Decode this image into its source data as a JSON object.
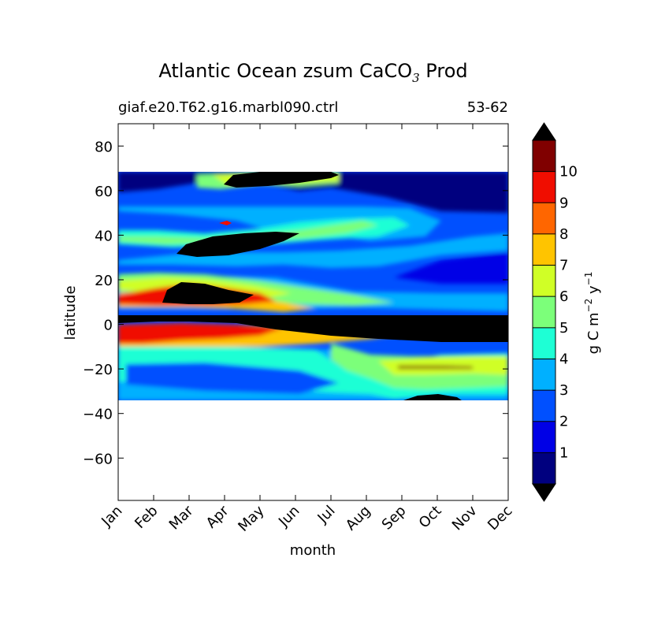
{
  "chart_data": {
    "type": "heatmap",
    "title_main": "Atlantic Ocean zsum CaCO",
    "title_sub": "3",
    "title_tail": " Prod",
    "subtitle_left": "giaf.e20.T62.g16.marbl090.ctrl",
    "subtitle_right": "53-62",
    "xlabel": "month",
    "ylabel": "latitude",
    "colorbar_label": "g C m",
    "colorbar_exp1": "−2",
    "colorbar_mid": " y",
    "colorbar_exp2": "−1",
    "x_categories": [
      "Jan",
      "Feb",
      "Mar",
      "Apr",
      "May",
      "Jun",
      "Jul",
      "Aug",
      "Sep",
      "Oct",
      "Nov",
      "Dec"
    ],
    "y_ticks": [
      80,
      60,
      40,
      20,
      0,
      -20,
      -40,
      -60
    ],
    "y_tick_labels": [
      "80",
      "60",
      "40",
      "20",
      "0",
      "−20",
      "−40",
      "−60"
    ],
    "ylim": [
      -79,
      90
    ],
    "data_lat_range": [
      -34,
      68
    ],
    "colorbar_levels": [
      0,
      1,
      2,
      3,
      4,
      5,
      6,
      7,
      8,
      9,
      10,
      11
    ],
    "colorbar_tick_values": [
      1,
      2,
      3,
      4,
      5,
      6,
      7,
      8,
      9,
      10
    ],
    "colorbar_extend": "both",
    "colors": [
      "#00007f",
      "#0000e6",
      "#0050ff",
      "#00b0ff",
      "#1effd5",
      "#7cff7a",
      "#d0ff26",
      "#ffc400",
      "#ff6600",
      "#f00d00",
      "#800000"
    ],
    "features": [
      {
        "label": "band",
        "lat": [
          -34,
          68
        ],
        "level": 2
      },
      {
        "month": 5.2,
        "lat": 62,
        "level": 10
      },
      {
        "month": 2.6,
        "lat": 37,
        "level": 10
      },
      {
        "month": 3.3,
        "lat": 14,
        "level": 10
      },
      {
        "month": 6.5,
        "lat": -3,
        "level": 10
      },
      {
        "month": 9.3,
        "lat": -19,
        "level": 8
      },
      {
        "month": 9.3,
        "lat": -33,
        "level": 10
      }
    ]
  }
}
